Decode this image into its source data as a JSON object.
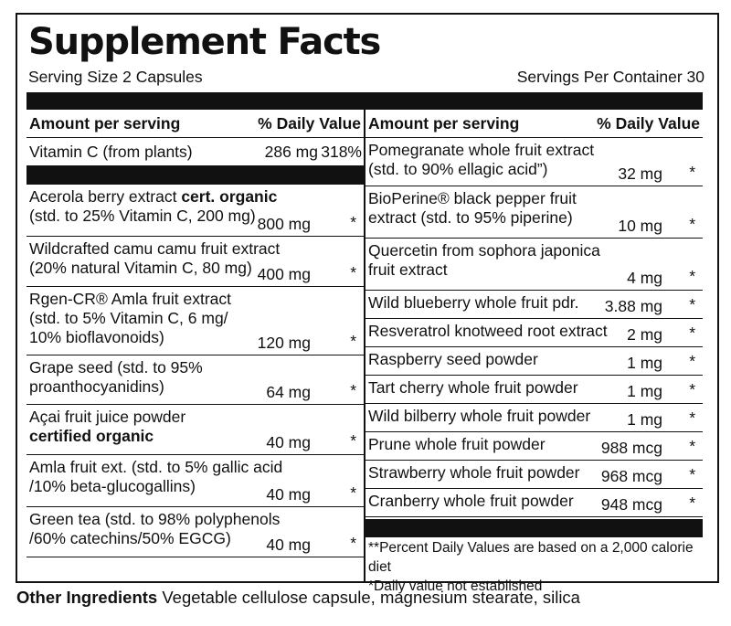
{
  "title": "Supplement Facts",
  "serving_size": "Serving Size 2 Capsules",
  "servings_per_container": "Servings Per Container 30",
  "left_header": {
    "amount": "Amount per serving",
    "dv": "% Daily Value"
  },
  "right_header": {
    "amount": "Amount per serving",
    "dv": "% Daily Value"
  },
  "vitamin_c": {
    "name": "Vitamin C (from plants)",
    "amount": "286 mg",
    "dv": "318%"
  },
  "left_items": [
    {
      "line1": "Acerola berry extract ",
      "line1_bold": "cert. organic",
      "line2": "(std. to 25% Vitamin C, 200 mg)",
      "amount": "800 mg",
      "star": "*"
    },
    {
      "line1": "Wildcrafted camu camu fruit extract",
      "line2": "(20% natural Vitamin C, 80 mg)",
      "amount": "400 mg",
      "star": "*"
    },
    {
      "line1": "Rgen-CR® Amla fruit extract",
      "line2": "(std. to 5% Vitamin C, 6 mg/",
      "line3": "10% bioflavonoids)",
      "amount": "120 mg",
      "star": "*"
    },
    {
      "line1": "Grape seed (std. to 95%",
      "line2": "proanthocyanidins)",
      "amount": "64 mg",
      "star": "*"
    },
    {
      "line1": "Açai fruit juice powder",
      "line2_bold": "certified organic",
      "amount": "40 mg",
      "star": "*"
    },
    {
      "line1": "Amla fruit ext. (std. to 5% gallic acid",
      "line2": "/10% beta-glucogallins)",
      "amount": "40 mg",
      "star": "*"
    },
    {
      "line1": "Green tea (std. to 98% polyphenols",
      "line2": "/60% catechins/50% EGCG)",
      "amount": "40 mg",
      "star": "*"
    }
  ],
  "right_items": [
    {
      "line1": "Pomegranate whole fruit extract",
      "line2": "(std. to 90% ellagic acid”)",
      "amount": "32 mg",
      "star": "*"
    },
    {
      "line1": "BioPerine® black pepper fruit",
      "line2": "extract (std. to 95% piperine)",
      "amount": "10 mg",
      "star": "*"
    },
    {
      "line1": "Quercetin from sophora japonica",
      "line2": "fruit extract",
      "amount": "4 mg",
      "star": "*"
    },
    {
      "line1": "Wild blueberry whole fruit pdr.",
      "amount": "3.88 mg",
      "star": "*"
    },
    {
      "line1": "Resveratrol knotweed root extract",
      "amount": "2 mg",
      "star": "*"
    },
    {
      "line1": "Raspberry seed powder",
      "amount": "1 mg",
      "star": "*"
    },
    {
      "line1": "Tart cherry whole fruit powder",
      "amount": "1 mg",
      "star": "*"
    },
    {
      "line1": "Wild bilberry whole fruit powder",
      "amount": "1 mg",
      "star": "*"
    },
    {
      "line1": "Prune whole fruit powder",
      "amount": "988 mcg",
      "star": "*"
    },
    {
      "line1": "Strawberry whole fruit powder",
      "amount": "968 mcg",
      "star": "*"
    },
    {
      "line1": "Cranberry whole fruit powder",
      "amount": "948 mcg",
      "star": "*"
    }
  ],
  "footnotes": {
    "dv_note": "**Percent Daily Values are based on a 2,000 calorie diet",
    "star_note": "*Daily value not established"
  },
  "other_ingredients": {
    "label": "Other Ingredients",
    "text": " Vegetable cellulose capsule, magnesium stearate, silica"
  }
}
